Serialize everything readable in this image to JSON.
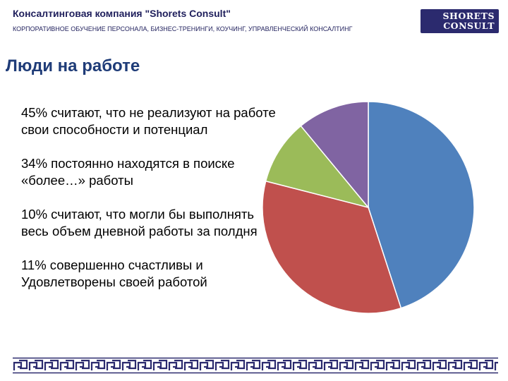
{
  "header": {
    "company": "Консалтинговая компания \"Shorets Consult\"",
    "tagline": "КОРПОРАТИВНОЕ ОБУЧЕНИЕ ПЕРСОНАЛА, БИЗНЕС-ТРЕНИНГИ, КОУЧИНГ, УПРАВЛЕНЧЕСКИЙ КОНСАЛТИНГ"
  },
  "logo": [
    "SHORETS",
    "CONSULT"
  ],
  "chart_data": {
    "type": "pie",
    "title": "Люди на работе",
    "categories": [
      "считают, что не реализуют на работе свои способности и потенциал",
      "постоянно находятся в поиске «более…» работы",
      "считают, что могли бы выполнять весь объем дневной работы за полдня",
      "совершенно счастливы и Удовлетворены своей работой"
    ],
    "values": [
      45,
      34,
      10,
      11
    ],
    "value_labels": [
      "45%",
      "34%",
      "10%",
      "11%"
    ],
    "colors": [
      "#4f81bd",
      "#c0504d",
      "#9bbb59",
      "#8064a2"
    ]
  }
}
